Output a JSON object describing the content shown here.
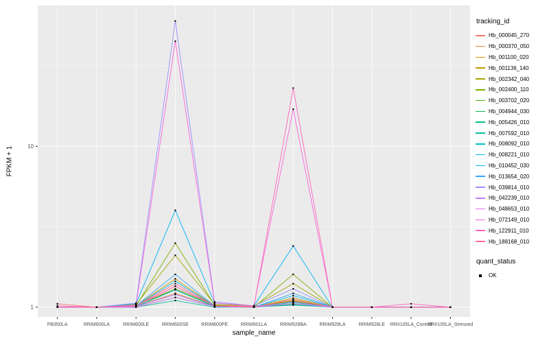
{
  "figure": {
    "background": "#FFFFFF",
    "panel_background": "#EBEBEB",
    "grid_color": "#FFFFFF",
    "tick_color": "#333333",
    "tick_label_color": "#4D4D4D",
    "axis_title_color": "#000000",
    "point_color": "#000000"
  },
  "chart_data": {
    "type": "line",
    "title": "",
    "xlabel": "sample_name",
    "ylabel": "FPKM + 1",
    "y_scale": "log10",
    "y_ticks": [
      1,
      10
    ],
    "ylim": [
      0.87,
      75
    ],
    "grid": true,
    "legend_position": "right",
    "categories": [
      "PB350LA",
      "RRIM600LA",
      "RRIM600LE",
      "RRIM600SE",
      "RRIM600PE",
      "RRIM901LA",
      "RRIM928BA",
      "RRIM928LA",
      "RRIM928LE",
      "RRII105LA_Control",
      "RRII105LA_Stressed"
    ],
    "series": [
      {
        "name": "Hb_000045_270",
        "color": "#F8766D",
        "values": [
          1.05,
          1,
          1.03,
          1.3,
          1.03,
          1.01,
          1.1,
          1,
          1,
          1,
          1
        ]
      },
      {
        "name": "Hb_000370_050",
        "color": "#EA8331",
        "values": [
          1,
          1,
          1.01,
          1.22,
          1.01,
          1,
          1.07,
          1,
          1,
          1,
          1
        ]
      },
      {
        "name": "Hb_001100_020",
        "color": "#D89000",
        "values": [
          1,
          1,
          1.02,
          1.35,
          1.02,
          1.01,
          1.1,
          1,
          1,
          1,
          1
        ]
      },
      {
        "name": "Hb_001136_140",
        "color": "#C09B00",
        "values": [
          1,
          1,
          1.02,
          1.5,
          1.02,
          1,
          1.14,
          1,
          1,
          1,
          1
        ]
      },
      {
        "name": "Hb_002342_040",
        "color": "#A3A500",
        "values": [
          1,
          1,
          1.04,
          2.1,
          1.04,
          1.02,
          1.4,
          1,
          1,
          1,
          1
        ]
      },
      {
        "name": "Hb_002400_110",
        "color": "#7CAE00",
        "values": [
          1,
          1,
          1.02,
          2.5,
          1.03,
          1,
          1.6,
          1,
          1,
          1,
          1
        ]
      },
      {
        "name": "Hb_003702_020",
        "color": "#39B600",
        "values": [
          1,
          1,
          1.01,
          1.3,
          1.02,
          1,
          1.09,
          1,
          1,
          1,
          1
        ]
      },
      {
        "name": "Hb_004944_030",
        "color": "#00BB4E",
        "values": [
          1,
          1,
          1.01,
          1.2,
          1.01,
          1,
          1.05,
          1,
          1,
          1,
          1
        ]
      },
      {
        "name": "Hb_005426_010",
        "color": "#00C079",
        "values": [
          1,
          1,
          1,
          1.15,
          1.01,
          1,
          1.04,
          1,
          1,
          1,
          1
        ]
      },
      {
        "name": "Hb_007592_010",
        "color": "#00C19C",
        "values": [
          1,
          1,
          1,
          1.1,
          1,
          1,
          1.03,
          1,
          1,
          1,
          1
        ]
      },
      {
        "name": "Hb_008092_010",
        "color": "#00BFC4",
        "values": [
          1,
          1,
          1.01,
          1.28,
          1.01,
          1,
          1.07,
          1,
          1,
          1,
          1
        ]
      },
      {
        "name": "Hb_008221_010",
        "color": "#00BAE0",
        "values": [
          1,
          1,
          1.02,
          1.45,
          1.02,
          1,
          1.18,
          1,
          1,
          1,
          1
        ]
      },
      {
        "name": "Hb_010452_030",
        "color": "#00B0F6",
        "values": [
          1,
          1,
          1.05,
          4.0,
          1.06,
          1.02,
          2.4,
          1,
          1,
          1,
          1
        ]
      },
      {
        "name": "Hb_013654_020",
        "color": "#35A2FF",
        "values": [
          1,
          1,
          1.02,
          1.6,
          1.02,
          1,
          1.22,
          1,
          1,
          1,
          1
        ]
      },
      {
        "name": "Hb_039814_010",
        "color": "#9590FF",
        "values": [
          1,
          1,
          1.06,
          60,
          1.08,
          1.02,
          1.3,
          1,
          1,
          1,
          1
        ]
      },
      {
        "name": "Hb_042239_010",
        "color": "#C77CFF",
        "values": [
          1,
          1,
          1.01,
          1.2,
          1.01,
          1,
          1.08,
          1,
          1,
          1,
          1
        ]
      },
      {
        "name": "Hb_048653_010",
        "color": "#E76BF3",
        "values": [
          1,
          1,
          1,
          1.15,
          1.01,
          1,
          1.05,
          1,
          1,
          1,
          1
        ]
      },
      {
        "name": "Hb_072149_010",
        "color": "#FA62DB",
        "values": [
          1,
          1,
          1.03,
          45,
          1.06,
          1.02,
          17,
          1,
          1,
          1,
          1
        ]
      },
      {
        "name": "Hb_122911_010",
        "color": "#FF62BC",
        "values": [
          1.02,
          1,
          1.02,
          1.35,
          1.02,
          1.01,
          23,
          1,
          1,
          1.05,
          1
        ]
      },
      {
        "name": "Hb_188168_010",
        "color": "#FF6A98",
        "values": [
          1,
          1,
          1.02,
          1.4,
          1.02,
          1,
          1.12,
          1,
          1,
          1,
          1
        ]
      }
    ],
    "legend": {
      "tracking_title": "tracking_id",
      "quant_title": "quant_status",
      "quant_items": [
        {
          "label": "OK",
          "shape": "square-point",
          "color": "#000000"
        }
      ]
    }
  }
}
